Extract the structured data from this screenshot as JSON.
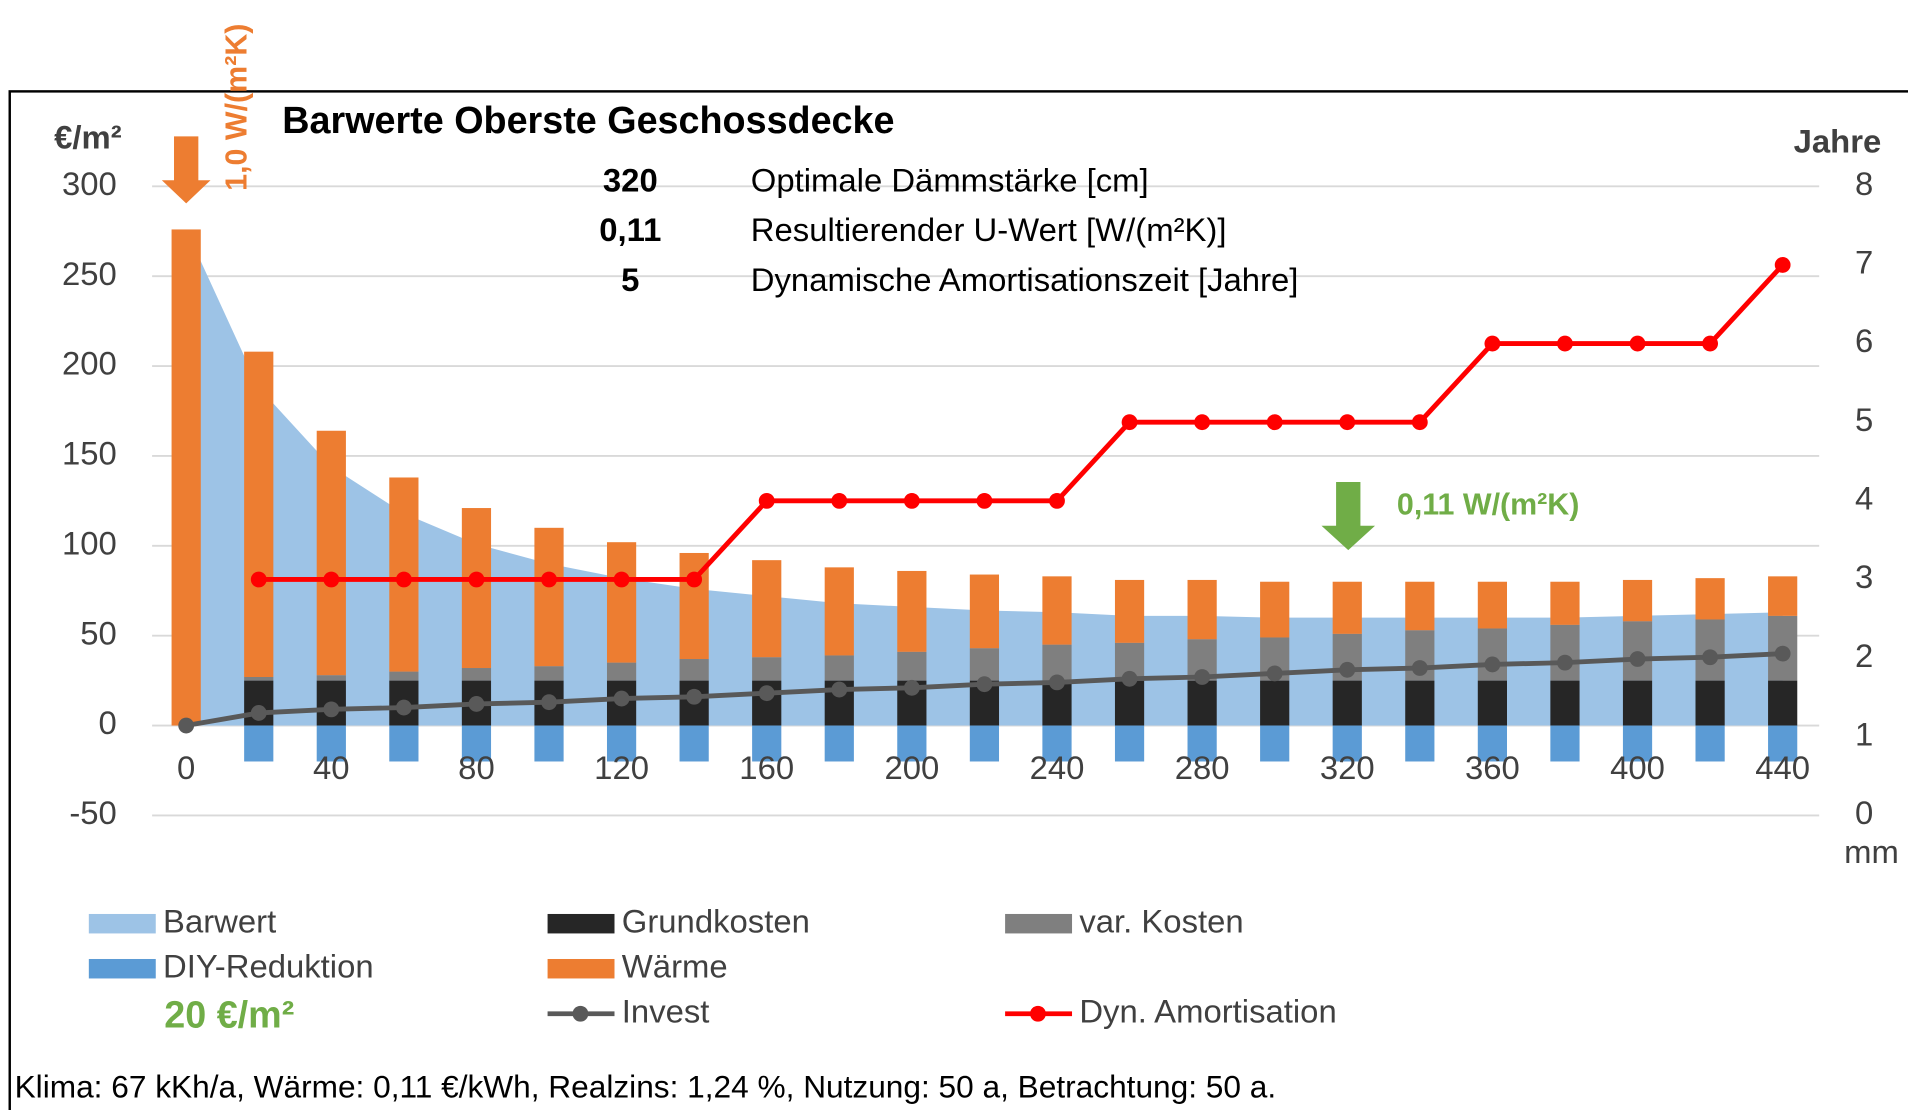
{
  "chart_data": {
    "type": "bar",
    "title": "Barwerte Oberste Geschossdecke",
    "y_label": "€/m²",
    "y2_label": "Jahre",
    "x_label": "mm",
    "categories": [
      "0",
      null,
      "40",
      null,
      "80",
      null,
      "120",
      null,
      "160",
      null,
      "200",
      null,
      "240",
      null,
      "280",
      null,
      "320",
      null,
      "360",
      null,
      "400",
      null,
      "440"
    ],
    "ylim": [
      -50,
      300
    ],
    "yticks": [
      -50,
      0,
      50,
      100,
      150,
      200,
      250,
      300
    ],
    "y2lim": [
      0,
      8
    ],
    "y2ticks": [
      0,
      1,
      2,
      3,
      4,
      5,
      6,
      7,
      8
    ],
    "grid": true,
    "series": [
      {
        "name": "Barwert",
        "kind": "area",
        "color": "#9dc3e6",
        "values": [
          276,
          188,
          144,
          118,
          101,
          90,
          82,
          76,
          72,
          68,
          66,
          64,
          63,
          61,
          61,
          60,
          60,
          60,
          60,
          60,
          61,
          62,
          63
        ]
      },
      {
        "name": "Grundkosten",
        "kind": "bar",
        "color": "#262626",
        "values": [
          0,
          25,
          25,
          25,
          25,
          25,
          25,
          25,
          25,
          25,
          25,
          25,
          25,
          25,
          25,
          25,
          25,
          25,
          25,
          25,
          25,
          25,
          25
        ]
      },
      {
        "name": "var. Kosten",
        "kind": "bar",
        "color": "#7f7f7f",
        "values": [
          0,
          2,
          3,
          5,
          7,
          8,
          10,
          12,
          13,
          14,
          16,
          18,
          20,
          21,
          23,
          24,
          26,
          28,
          29,
          31,
          33,
          34,
          36
        ]
      },
      {
        "name": "DIY-Reduktion",
        "kind": "bar",
        "color": "#5b9bd5",
        "values": [
          0,
          -20,
          -20,
          -20,
          -20,
          -20,
          -20,
          -20,
          -20,
          -20,
          -20,
          -20,
          -20,
          -20,
          -20,
          -20,
          -20,
          -20,
          -20,
          -20,
          -20,
          -20,
          -20
        ]
      },
      {
        "name": "Wärme",
        "kind": "bar",
        "color": "#ed7d31",
        "values": [
          276,
          181,
          136,
          108,
          89,
          77,
          67,
          59,
          54,
          49,
          45,
          41,
          38,
          35,
          33,
          31,
          29,
          27,
          26,
          24,
          23,
          23,
          22
        ]
      },
      {
        "name": "Invest",
        "kind": "line",
        "color": "#595959",
        "values": [
          0,
          7,
          9,
          10,
          12,
          13,
          15,
          16,
          18,
          20,
          21,
          23,
          24,
          26,
          27,
          29,
          31,
          32,
          34,
          35,
          37,
          38,
          40
        ]
      },
      {
        "name": "Dyn. Amortisation",
        "kind": "line",
        "axis": "y2",
        "color": "#ff0000",
        "values": [
          null,
          3,
          3,
          3,
          3,
          3,
          3,
          3,
          4,
          4,
          4,
          4,
          4,
          5,
          5,
          5,
          5,
          5,
          6,
          6,
          6,
          6,
          7
        ]
      }
    ],
    "annotations": {
      "u_start": "1,0 W/(m²K)",
      "u_opt": "0,11 W/(m²K)",
      "diy_note": "20 €/m²"
    },
    "info_table": [
      [
        "320",
        "Optimale Dämmstärke [cm]"
      ],
      [
        "0,11",
        "Resultierender U-Wert [W/(m²K)]"
      ],
      [
        "5",
        "Dynamische Amortisationszeit [Jahre]"
      ]
    ],
    "footer": "Klima: 67 kKh/a, Wärme: 0,11 €/kWh, Realzins: 1,24 %, Nutzung: 50 a, Betrachtung: 50 a."
  }
}
